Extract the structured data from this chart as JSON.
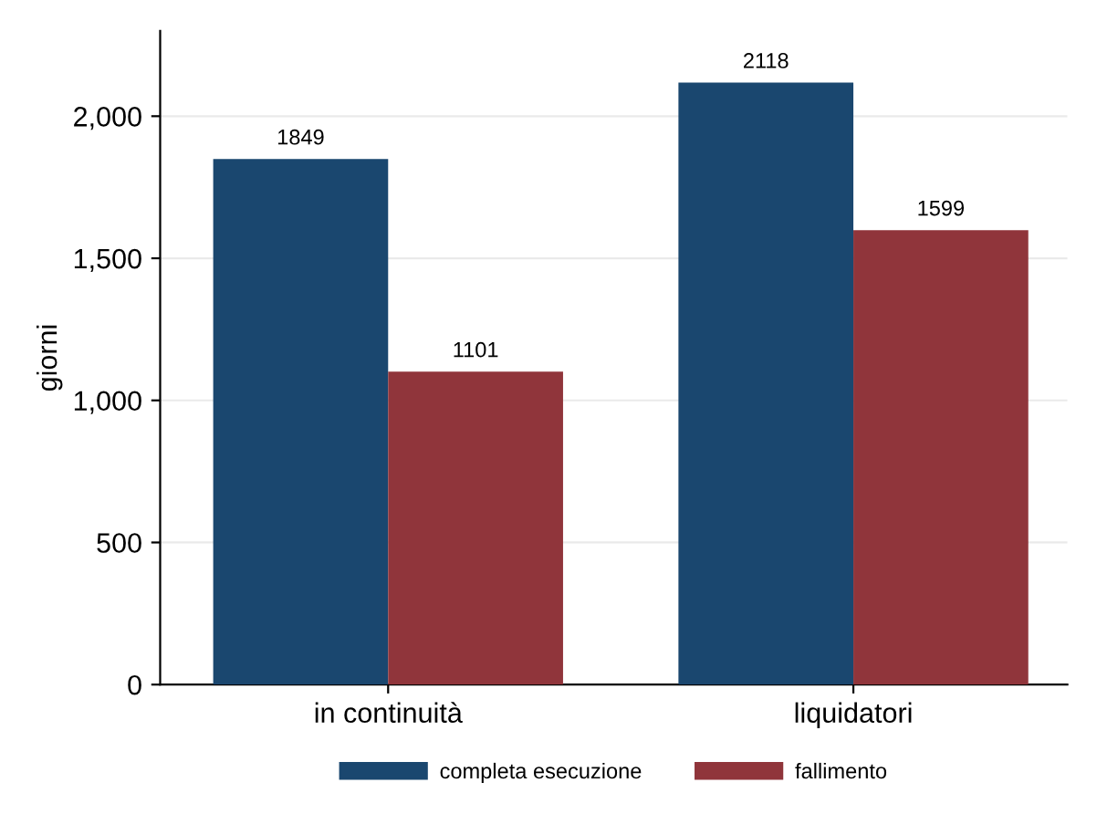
{
  "chart_data": {
    "type": "bar",
    "ylabel": "giorni",
    "categories": [
      "in continuità",
      "liquidatori"
    ],
    "series": [
      {
        "name": "completa esecuzione",
        "color": "#1a476f",
        "values": [
          1849,
          2118
        ]
      },
      {
        "name": "fallimento",
        "color": "#90353b",
        "values": [
          1101,
          1599
        ]
      }
    ],
    "ylim": [
      0,
      2300
    ],
    "yticks": [
      0,
      {
        "value": 500,
        "label": "500"
      },
      {
        "value": 1000,
        "label": "1,000"
      },
      {
        "value": 1500,
        "label": "1,500"
      },
      {
        "value": 2000,
        "label": "2,000"
      }
    ],
    "grid": "y",
    "legend": "bottom",
    "data_labels": true
  }
}
